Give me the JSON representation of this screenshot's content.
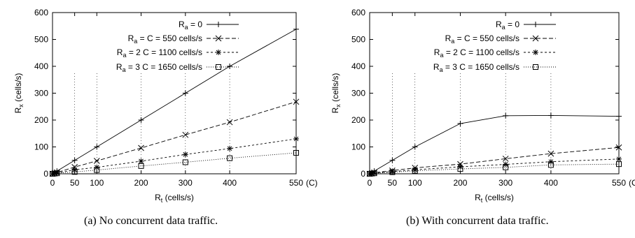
{
  "captions": {
    "a": "(a) No concurrent data traffic.",
    "b": "(b) With concurrent data traffic."
  },
  "chart_data": [
    {
      "type": "line",
      "xlabel": {
        "main": "R",
        "sub": "t",
        "rest": " (cells/s)"
      },
      "ylabel": {
        "main": "R",
        "sub": "x",
        "rest": " (cells/s)"
      },
      "xlim": [
        0,
        550
      ],
      "ylim": [
        0,
        600
      ],
      "xticks": [
        0,
        50,
        100,
        200,
        300,
        400,
        550
      ],
      "xtick_labels": [
        "0",
        "50",
        "100",
        "200",
        "300",
        "400",
        "550"
      ],
      "x_annotation": "(C)",
      "yticks": [
        0,
        100,
        200,
        300,
        400,
        500,
        600
      ],
      "ytick_labels": [
        "0",
        "100",
        "200",
        "300",
        "400",
        "500",
        "600"
      ],
      "grid": "vertical dotted lines at x ticks",
      "legend_position": "top-left",
      "series": [
        {
          "legend": {
            "main": "R",
            "sub": "a",
            "rest": " = 0"
          },
          "marker": "plus",
          "dash": "none",
          "x": [
            0,
            5,
            10,
            50,
            100,
            200,
            300,
            400,
            550
          ],
          "y": [
            0,
            5,
            10,
            50,
            100,
            200,
            300,
            400,
            538
          ]
        },
        {
          "legend": {
            "main": "R",
            "sub": "a",
            "rest": " = C = 550 cells/s"
          },
          "marker": "cross",
          "dash": "6,3",
          "x": [
            0,
            5,
            10,
            50,
            100,
            200,
            300,
            400,
            550
          ],
          "y": [
            0,
            3,
            5,
            25,
            48,
            96,
            145,
            192,
            268
          ]
        },
        {
          "legend": {
            "main": "R",
            "sub": "a",
            "rest": " = 2 C = 1100 cells/s"
          },
          "marker": "star",
          "dash": "3,3",
          "x": [
            0,
            5,
            10,
            50,
            100,
            200,
            300,
            400,
            550
          ],
          "y": [
            0,
            2,
            3,
            15,
            24,
            47,
            72,
            94,
            130
          ]
        },
        {
          "legend": {
            "main": "R",
            "sub": "a",
            "rest": " = 3 C = 1650 cells/s"
          },
          "marker": "square",
          "dash": "1,2",
          "x": [
            0,
            5,
            10,
            50,
            100,
            200,
            300,
            400,
            550
          ],
          "y": [
            0,
            1,
            2,
            7,
            14,
            29,
            43,
            58,
            78
          ]
        }
      ]
    },
    {
      "type": "line",
      "xlabel": {
        "main": "R",
        "sub": "t",
        "rest": " (cells/s)"
      },
      "ylabel": {
        "main": "R",
        "sub": "x",
        "rest": " (cells/s)"
      },
      "xlim": [
        0,
        550
      ],
      "ylim": [
        0,
        600
      ],
      "xticks": [
        0,
        50,
        100,
        200,
        300,
        400,
        550
      ],
      "xtick_labels": [
        "0",
        "50",
        "100",
        "200",
        "300",
        "400",
        "550"
      ],
      "x_annotation": "(C)",
      "yticks": [
        0,
        100,
        200,
        300,
        400,
        500,
        600
      ],
      "ytick_labels": [
        "0",
        "100",
        "200",
        "300",
        "400",
        "500",
        "600"
      ],
      "grid": "vertical dotted lines at x ticks",
      "legend_position": "top-left",
      "series": [
        {
          "legend": {
            "main": "R",
            "sub": "a",
            "rest": " = 0"
          },
          "marker": "plus",
          "dash": "none",
          "x": [
            0,
            5,
            10,
            50,
            100,
            200,
            300,
            400,
            550
          ],
          "y": [
            0,
            5,
            10,
            50,
            100,
            187,
            216,
            217,
            214
          ]
        },
        {
          "legend": {
            "main": "R",
            "sub": "a",
            "rest": " = C = 550 cells/s"
          },
          "marker": "cross",
          "dash": "6,3",
          "x": [
            0,
            5,
            10,
            50,
            100,
            200,
            300,
            400,
            550
          ],
          "y": [
            0,
            2,
            4,
            12,
            22,
            36,
            56,
            75,
            98
          ]
        },
        {
          "legend": {
            "main": "R",
            "sub": "a",
            "rest": " = 2 C = 1100 cells/s"
          },
          "marker": "star",
          "dash": "3,3",
          "x": [
            0,
            5,
            10,
            50,
            100,
            200,
            300,
            400,
            550
          ],
          "y": [
            0,
            1,
            3,
            8,
            15,
            26,
            35,
            45,
            55
          ]
        },
        {
          "legend": {
            "main": "R",
            "sub": "a",
            "rest": " = 3 C = 1650 cells/s"
          },
          "marker": "square",
          "dash": "1,2",
          "x": [
            0,
            5,
            10,
            50,
            100,
            200,
            300,
            400,
            550
          ],
          "y": [
            0,
            1,
            2,
            6,
            11,
            18,
            24,
            33,
            36
          ]
        }
      ]
    }
  ]
}
